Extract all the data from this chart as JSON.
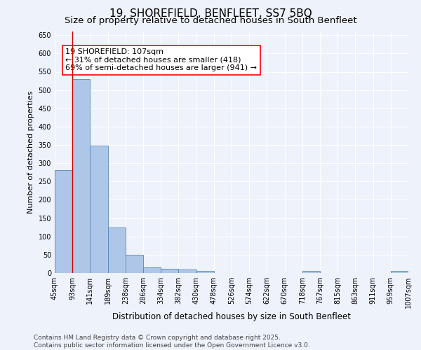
{
  "title": "19, SHOREFIELD, BENFLEET, SS7 5BQ",
  "subtitle": "Size of property relative to detached houses in South Benfleet",
  "xlabel": "Distribution of detached houses by size in South Benfleet",
  "ylabel": "Number of detached properties",
  "bar_values": [
    282,
    530,
    348,
    125,
    50,
    16,
    11,
    9,
    6,
    0,
    0,
    0,
    0,
    0,
    5,
    0,
    0,
    0,
    0,
    5
  ],
  "categories": [
    "45sqm",
    "93sqm",
    "141sqm",
    "189sqm",
    "238sqm",
    "286sqm",
    "334sqm",
    "382sqm",
    "430sqm",
    "478sqm",
    "526sqm",
    "574sqm",
    "622sqm",
    "670sqm",
    "718sqm",
    "767sqm",
    "815sqm",
    "863sqm",
    "911sqm",
    "959sqm",
    "1007sqm"
  ],
  "bar_color": "#aec6e8",
  "bar_edge_color": "#5588bb",
  "vline_x": 1.0,
  "vline_color": "#cc0000",
  "annotation_text": "19 SHOREFIELD: 107sqm\n← 31% of detached houses are smaller (418)\n69% of semi-detached houses are larger (941) →",
  "ylim": [
    0,
    660
  ],
  "yticks": [
    0,
    50,
    100,
    150,
    200,
    250,
    300,
    350,
    400,
    450,
    500,
    550,
    600,
    650
  ],
  "background_color": "#eef2fb",
  "grid_color": "#ffffff",
  "footer_text": "Contains HM Land Registry data © Crown copyright and database right 2025.\nContains public sector information licensed under the Open Government Licence v3.0.",
  "title_fontsize": 11,
  "subtitle_fontsize": 9.5,
  "xlabel_fontsize": 8.5,
  "ylabel_fontsize": 8,
  "tick_fontsize": 7,
  "annotation_fontsize": 8,
  "footer_fontsize": 6.5
}
